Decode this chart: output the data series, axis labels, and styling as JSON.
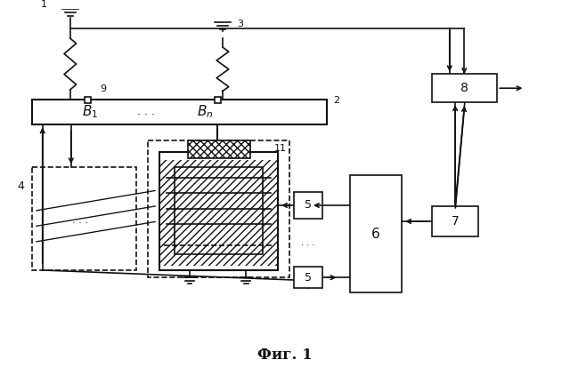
{
  "fig_label": "Фиг. 1",
  "background_color": "#ffffff",
  "figsize": [
    6.4,
    4.23
  ],
  "dpi": 100
}
